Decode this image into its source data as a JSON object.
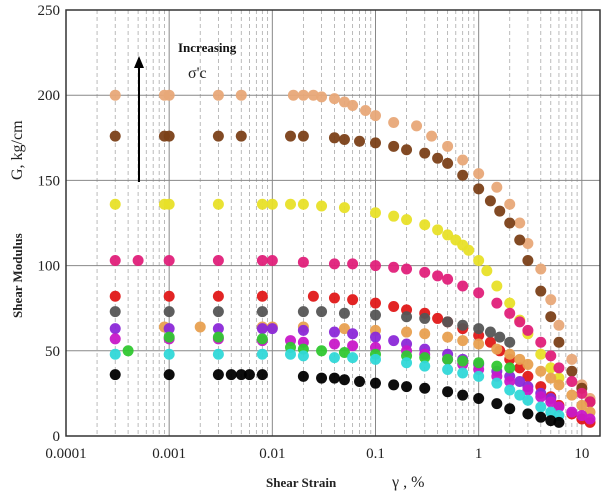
{
  "chart_data": {
    "type": "scatter",
    "title": "",
    "xlabel": "Shear Strain",
    "xlabel_symbol": "γ , %",
    "ylabel": "Shear Modulus",
    "ylabel_symbol": "G, kg/cm",
    "x_scale": "log",
    "xlim": [
      0.0001,
      15
    ],
    "ylim": [
      0,
      250
    ],
    "x_ticks": [
      0.0001,
      0.001,
      0.01,
      0.1,
      1,
      10
    ],
    "x_tick_labels": [
      "0.0001",
      "0.001",
      "0.01",
      "0.1",
      "1",
      "10"
    ],
    "y_ticks": [
      0,
      50,
      100,
      150,
      200,
      250
    ],
    "y_tick_labels": [
      "0",
      "50",
      "100",
      "150",
      "200",
      "250"
    ],
    "grid": true,
    "annotation": {
      "text": "Increasing",
      "symbol": "σ'c"
    },
    "series": [
      {
        "color": "#e8a878",
        "points": [
          [
            0.0003,
            200
          ],
          [
            0.0009,
            200
          ],
          [
            0.001,
            200
          ],
          [
            0.003,
            200
          ],
          [
            0.005,
            200
          ],
          [
            0.016,
            200
          ],
          [
            0.02,
            200
          ],
          [
            0.025,
            200
          ],
          [
            0.03,
            199
          ],
          [
            0.04,
            198
          ],
          [
            0.05,
            196
          ],
          [
            0.06,
            194
          ],
          [
            0.08,
            191
          ],
          [
            0.1,
            188
          ],
          [
            0.15,
            184
          ],
          [
            0.25,
            182
          ],
          [
            0.35,
            176
          ],
          [
            0.5,
            170
          ],
          [
            0.7,
            162
          ],
          [
            1.0,
            154
          ],
          [
            1.5,
            146
          ],
          [
            2.0,
            136
          ],
          [
            2.5,
            125
          ],
          [
            3.0,
            113
          ],
          [
            4.0,
            98
          ],
          [
            5.0,
            80
          ],
          [
            6.0,
            65
          ],
          [
            8.0,
            45
          ],
          [
            10,
            30
          ],
          [
            12,
            22
          ]
        ]
      },
      {
        "color": "#7b4018",
        "points": [
          [
            0.0003,
            176
          ],
          [
            0.0009,
            176
          ],
          [
            0.001,
            176
          ],
          [
            0.003,
            176
          ],
          [
            0.005,
            176
          ],
          [
            0.015,
            176
          ],
          [
            0.02,
            176
          ],
          [
            0.04,
            175
          ],
          [
            0.05,
            174
          ],
          [
            0.07,
            173
          ],
          [
            0.1,
            172
          ],
          [
            0.15,
            170
          ],
          [
            0.2,
            168
          ],
          [
            0.3,
            166
          ],
          [
            0.4,
            163
          ],
          [
            0.5,
            160
          ],
          [
            0.7,
            153
          ],
          [
            1.0,
            145
          ],
          [
            1.3,
            138
          ],
          [
            1.6,
            132
          ],
          [
            2.0,
            125
          ],
          [
            2.5,
            115
          ],
          [
            3.0,
            103
          ],
          [
            4.0,
            85
          ],
          [
            5.0,
            70
          ],
          [
            6.0,
            55
          ],
          [
            8.0,
            38
          ],
          [
            10,
            28
          ],
          [
            12,
            20
          ]
        ]
      },
      {
        "color": "#e8e028",
        "points": [
          [
            0.0003,
            136
          ],
          [
            0.0009,
            136
          ],
          [
            0.001,
            136
          ],
          [
            0.003,
            136
          ],
          [
            0.008,
            136
          ],
          [
            0.01,
            136
          ],
          [
            0.015,
            136
          ],
          [
            0.02,
            136
          ],
          [
            0.03,
            135
          ],
          [
            0.05,
            134
          ],
          [
            0.1,
            131
          ],
          [
            0.15,
            129
          ],
          [
            0.2,
            127
          ],
          [
            0.3,
            124
          ],
          [
            0.4,
            121
          ],
          [
            0.5,
            118
          ],
          [
            0.6,
            115
          ],
          [
            0.7,
            112
          ],
          [
            0.8,
            109
          ],
          [
            1.0,
            103
          ],
          [
            1.2,
            97
          ],
          [
            1.5,
            88
          ],
          [
            2.0,
            78
          ],
          [
            2.5,
            68
          ],
          [
            3.0,
            60
          ],
          [
            4.0,
            48
          ],
          [
            5.0,
            40
          ],
          [
            6.0,
            34
          ]
        ]
      },
      {
        "color": "#e0207a",
        "points": [
          [
            0.0003,
            103
          ],
          [
            0.0005,
            103
          ],
          [
            0.001,
            103
          ],
          [
            0.003,
            103
          ],
          [
            0.008,
            103
          ],
          [
            0.01,
            103
          ],
          [
            0.02,
            102
          ],
          [
            0.04,
            101
          ],
          [
            0.06,
            101
          ],
          [
            0.1,
            100
          ],
          [
            0.15,
            99
          ],
          [
            0.2,
            98
          ],
          [
            0.3,
            96
          ],
          [
            0.4,
            94
          ],
          [
            0.5,
            92
          ],
          [
            0.7,
            88
          ],
          [
            1.0,
            84
          ],
          [
            1.5,
            78
          ],
          [
            2.0,
            72
          ],
          [
            2.5,
            67
          ],
          [
            3.0,
            62
          ],
          [
            4.0,
            55
          ],
          [
            5.0,
            47
          ],
          [
            6.0,
            40
          ],
          [
            8.0,
            32
          ],
          [
            10,
            25
          ],
          [
            12,
            20
          ]
        ]
      },
      {
        "color": "#e01818",
        "points": [
          [
            0.0003,
            82
          ],
          [
            0.001,
            82
          ],
          [
            0.003,
            82
          ],
          [
            0.008,
            82
          ],
          [
            0.025,
            82
          ],
          [
            0.04,
            81
          ],
          [
            0.06,
            80
          ],
          [
            0.1,
            78
          ],
          [
            0.15,
            76
          ],
          [
            0.2,
            74
          ],
          [
            0.3,
            72
          ],
          [
            0.4,
            69
          ],
          [
            0.5,
            67
          ],
          [
            0.7,
            63
          ],
          [
            1.0,
            59
          ],
          [
            1.3,
            55
          ],
          [
            1.6,
            50
          ],
          [
            2.0,
            45
          ],
          [
            2.5,
            40
          ],
          [
            3.0,
            35
          ],
          [
            4.0,
            29
          ],
          [
            5.0,
            23
          ],
          [
            6.0,
            18
          ],
          [
            8.0,
            13
          ],
          [
            10,
            10
          ],
          [
            12,
            8
          ]
        ]
      },
      {
        "color": "#555555",
        "points": [
          [
            0.0003,
            73
          ],
          [
            0.001,
            73
          ],
          [
            0.003,
            73
          ],
          [
            0.008,
            73
          ],
          [
            0.02,
            73
          ],
          [
            0.03,
            73
          ],
          [
            0.05,
            72
          ],
          [
            0.1,
            71
          ],
          [
            0.2,
            70
          ],
          [
            0.3,
            69
          ],
          [
            0.5,
            67
          ],
          [
            0.7,
            65
          ],
          [
            1.0,
            63
          ],
          [
            1.3,
            61
          ],
          [
            1.6,
            58
          ],
          [
            2.0,
            55
          ]
        ]
      },
      {
        "color": "#e8a050",
        "points": [
          [
            0.0009,
            64
          ],
          [
            0.002,
            64
          ],
          [
            0.008,
            64
          ],
          [
            0.01,
            64
          ],
          [
            0.02,
            64
          ],
          [
            0.05,
            63
          ],
          [
            0.1,
            62
          ],
          [
            0.2,
            61
          ],
          [
            0.3,
            60
          ],
          [
            0.5,
            58
          ],
          [
            0.7,
            56
          ],
          [
            1.0,
            54
          ],
          [
            1.5,
            51
          ],
          [
            2.0,
            48
          ],
          [
            2.5,
            45
          ],
          [
            3.0,
            42
          ],
          [
            4.0,
            38
          ],
          [
            5.0,
            34
          ],
          [
            6.0,
            30
          ],
          [
            8.0,
            24
          ],
          [
            10,
            18
          ],
          [
            12,
            14
          ]
        ]
      },
      {
        "color": "#8b28d8",
        "points": [
          [
            0.0003,
            63
          ],
          [
            0.001,
            63
          ],
          [
            0.003,
            63
          ],
          [
            0.008,
            63
          ],
          [
            0.01,
            63
          ],
          [
            0.02,
            62
          ],
          [
            0.04,
            61
          ],
          [
            0.06,
            60
          ],
          [
            0.1,
            58
          ],
          [
            0.15,
            56
          ],
          [
            0.2,
            54
          ],
          [
            0.3,
            51
          ],
          [
            0.5,
            48
          ],
          [
            0.7,
            45
          ],
          [
            1.0,
            42
          ],
          [
            1.5,
            38
          ],
          [
            2.0,
            35
          ],
          [
            2.5,
            32
          ],
          [
            3.0,
            29
          ],
          [
            4.0,
            25
          ],
          [
            5.0,
            22
          ]
        ]
      },
      {
        "color": "#c818c8",
        "points": [
          [
            0.0003,
            57
          ],
          [
            0.001,
            57
          ],
          [
            0.003,
            57
          ],
          [
            0.008,
            56
          ],
          [
            0.015,
            56
          ],
          [
            0.02,
            55
          ],
          [
            0.04,
            54
          ],
          [
            0.06,
            53
          ],
          [
            0.1,
            52
          ],
          [
            0.2,
            50
          ],
          [
            0.3,
            48
          ],
          [
            0.5,
            45
          ],
          [
            0.7,
            42
          ],
          [
            1.0,
            39
          ],
          [
            1.5,
            35
          ],
          [
            2.0,
            32
          ],
          [
            3.0,
            27
          ],
          [
            4.0,
            23
          ],
          [
            5.0,
            20
          ],
          [
            6.0,
            17
          ],
          [
            8.0,
            14
          ],
          [
            10,
            12
          ],
          [
            12,
            10
          ]
        ]
      },
      {
        "color": "#30c830",
        "points": [
          [
            0.0004,
            50
          ],
          [
            0.001,
            58
          ],
          [
            0.003,
            58
          ],
          [
            0.008,
            57
          ],
          [
            0.015,
            52
          ],
          [
            0.02,
            51
          ],
          [
            0.03,
            50
          ],
          [
            0.05,
            49
          ],
          [
            0.1,
            48
          ],
          [
            0.2,
            47
          ],
          [
            0.3,
            46
          ],
          [
            0.5,
            45
          ],
          [
            0.7,
            44
          ],
          [
            1.0,
            43
          ],
          [
            1.5,
            41
          ],
          [
            2.0,
            40
          ]
        ]
      },
      {
        "color": "#30d8d8",
        "points": [
          [
            0.0003,
            48
          ],
          [
            0.001,
            48
          ],
          [
            0.003,
            48
          ],
          [
            0.008,
            48
          ],
          [
            0.015,
            48
          ],
          [
            0.02,
            47
          ],
          [
            0.04,
            46
          ],
          [
            0.06,
            46
          ],
          [
            0.1,
            45
          ],
          [
            0.2,
            43
          ],
          [
            0.3,
            41
          ],
          [
            0.5,
            39
          ],
          [
            0.7,
            37
          ],
          [
            1.0,
            35
          ],
          [
            1.5,
            31
          ],
          [
            2.0,
            27
          ],
          [
            2.5,
            24
          ],
          [
            3.0,
            21
          ],
          [
            4.0,
            17
          ],
          [
            5.0,
            14
          ],
          [
            6.0,
            12
          ]
        ]
      },
      {
        "color": "#000000",
        "points": [
          [
            0.0003,
            36
          ],
          [
            0.001,
            36
          ],
          [
            0.003,
            36
          ],
          [
            0.004,
            36
          ],
          [
            0.005,
            36
          ],
          [
            0.006,
            36
          ],
          [
            0.008,
            36
          ],
          [
            0.02,
            35
          ],
          [
            0.03,
            34
          ],
          [
            0.04,
            34
          ],
          [
            0.05,
            33
          ],
          [
            0.07,
            32
          ],
          [
            0.1,
            31
          ],
          [
            0.15,
            30
          ],
          [
            0.2,
            29
          ],
          [
            0.3,
            28
          ],
          [
            0.5,
            26
          ],
          [
            0.7,
            24
          ],
          [
            1.0,
            22
          ],
          [
            1.5,
            19
          ],
          [
            2.0,
            16
          ],
          [
            3.0,
            13
          ],
          [
            4.0,
            11
          ],
          [
            5.0,
            9
          ],
          [
            6.0,
            8
          ]
        ]
      }
    ]
  }
}
